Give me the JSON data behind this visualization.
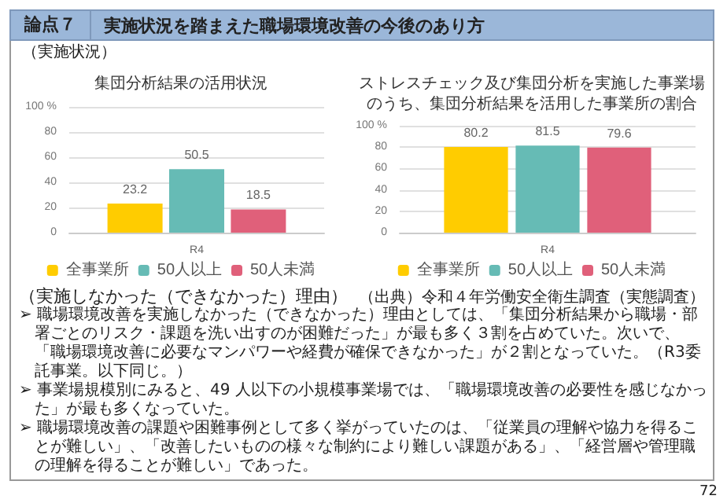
{
  "chart_data": [
    {
      "type": "other",
      "title": "論点７",
      "subtitle": "実施状況を踏まえた職場環境改善の今後のあり方",
      "annotations": [
        "（実施状況）"
      ]
    },
    {
      "type": "bar",
      "title": "集団分析結果の活用状況",
      "categories": [
        "R4"
      ],
      "series": [
        {
          "name": "全事業所",
          "color": "#ffcc00",
          "values": [
            23.2
          ]
        },
        {
          "name": "50人以上",
          "color": "#66bbb5",
          "values": [
            50.5
          ]
        },
        {
          "name": "50人未満",
          "color": "#e0607a",
          "values": [
            18.5
          ]
        }
      ],
      "ylim": [
        0,
        100
      ],
      "yticks": [
        0,
        20,
        40,
        60,
        80,
        {
          "value": 100,
          "label": "100 %"
        }
      ],
      "grid": "y",
      "legend": "bottom",
      "data_labels": true
    },
    {
      "type": "bar",
      "title": "ストレスチェック及び集団分析を実施した事業場のうち、集団分析結果を活用した事業所の割合",
      "categories": [
        "R4"
      ],
      "series": [
        {
          "name": "全事業所",
          "color": "#ffcc00",
          "values": [
            80.2
          ]
        },
        {
          "name": "50人以上",
          "color": "#66bbb5",
          "values": [
            81.5
          ]
        },
        {
          "name": "50人未満",
          "color": "#e0607a",
          "values": [
            79.6
          ]
        }
      ],
      "ylim": [
        0,
        100
      ],
      "yticks": [
        0,
        20,
        40,
        60,
        80,
        {
          "value": 100,
          "label": "100 %"
        }
      ],
      "grid": "y",
      "legend": "bottom",
      "data_labels": true
    },
    {
      "type": "other",
      "annotations": [
        "（実施しなかった（できなかった）理由）",
        "（出典）令和４年労働安全衛生調査（実態調査）",
        "➢ 職場環境改善を実施しなかった（できなかった）理由としては、「集団分析結果から職場・部署ごとのリスク・課題を洗い出すのが困難だった」が最も多く３割を占めていた。次いで、「職場環境改善に必要なマンパワーや経費が確保できなかった」が２割となっていた。（R3委託事業。以下同じ。）",
        "➢ 事業場規模別にみると、49 人以下の小規模事業場では、「職場環境改善の必要性を感じなかった」が最も多くなっていた。",
        "➢ 職場環境改善の課題や困難事例として多く挙がっていたのは、「従業員の理解や協力を得ることが難しい」、「改善したいものの様々な制約により難しい課題がある」、「経営層や管理職の理解を得ることが難しい」であった。",
        "72"
      ]
    }
  ]
}
